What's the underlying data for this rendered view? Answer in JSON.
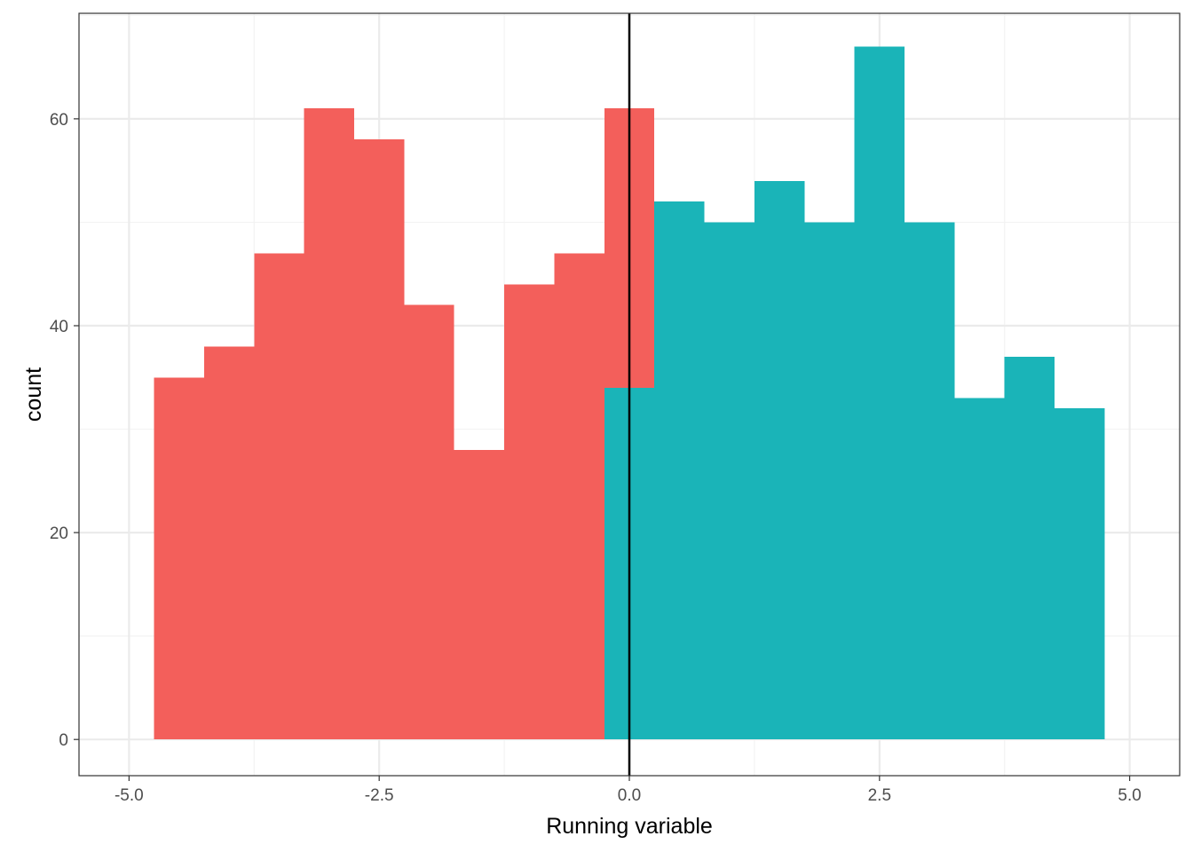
{
  "chart_data": {
    "type": "histogram",
    "title": "",
    "xlabel": "Running variable",
    "ylabel": "count",
    "xlim": [
      -5.5,
      5.5
    ],
    "ylim": [
      -3.5,
      70.2
    ],
    "bin_width": 0.5,
    "cutoff": 0.0,
    "x_ticks": [
      -5.0,
      -2.5,
      0.0,
      2.5,
      5.0
    ],
    "x_tick_labels": [
      "-5.0",
      "-2.5",
      "0.0",
      "2.5",
      "5.0"
    ],
    "y_ticks": [
      0,
      20,
      40,
      60
    ],
    "y_tick_labels": [
      "0",
      "20",
      "40",
      "60"
    ],
    "grid": true,
    "legend": "none",
    "colors": {
      "untreated": "#F35F5B",
      "treated": "#1AB4B8",
      "cutoff_line": "#000000",
      "panel_border": "#333333",
      "grid_major": "#EBEBEB",
      "grid_minor": "#F3F3F3"
    },
    "series": [
      {
        "name": "below-cutoff",
        "color_key": "untreated",
        "bins": [
          {
            "x0": -4.75,
            "x1": -4.25,
            "count": 35
          },
          {
            "x0": -4.25,
            "x1": -3.75,
            "count": 38
          },
          {
            "x0": -3.75,
            "x1": -3.25,
            "count": 47
          },
          {
            "x0": -3.25,
            "x1": -2.75,
            "count": 61
          },
          {
            "x0": -2.75,
            "x1": -2.25,
            "count": 58
          },
          {
            "x0": -2.25,
            "x1": -1.75,
            "count": 42
          },
          {
            "x0": -1.75,
            "x1": -1.25,
            "count": 28
          },
          {
            "x0": -1.25,
            "x1": -0.75,
            "count": 44
          },
          {
            "x0": -0.75,
            "x1": -0.25,
            "count": 47
          },
          {
            "x0": -0.25,
            "x1": 0.25,
            "count": 61
          }
        ]
      },
      {
        "name": "above-cutoff",
        "color_key": "treated",
        "bins": [
          {
            "x0": -0.25,
            "x1": 0.25,
            "count": 34
          },
          {
            "x0": 0.25,
            "x1": 0.75,
            "count": 52
          },
          {
            "x0": 0.75,
            "x1": 1.25,
            "count": 50
          },
          {
            "x0": 1.25,
            "x1": 1.75,
            "count": 54
          },
          {
            "x0": 1.75,
            "x1": 2.25,
            "count": 50
          },
          {
            "x0": 2.25,
            "x1": 2.75,
            "count": 67
          },
          {
            "x0": 2.75,
            "x1": 3.25,
            "count": 50
          },
          {
            "x0": 3.25,
            "x1": 3.75,
            "count": 33
          },
          {
            "x0": 3.75,
            "x1": 4.25,
            "count": 37
          },
          {
            "x0": 4.25,
            "x1": 4.75,
            "count": 32
          }
        ]
      }
    ]
  }
}
